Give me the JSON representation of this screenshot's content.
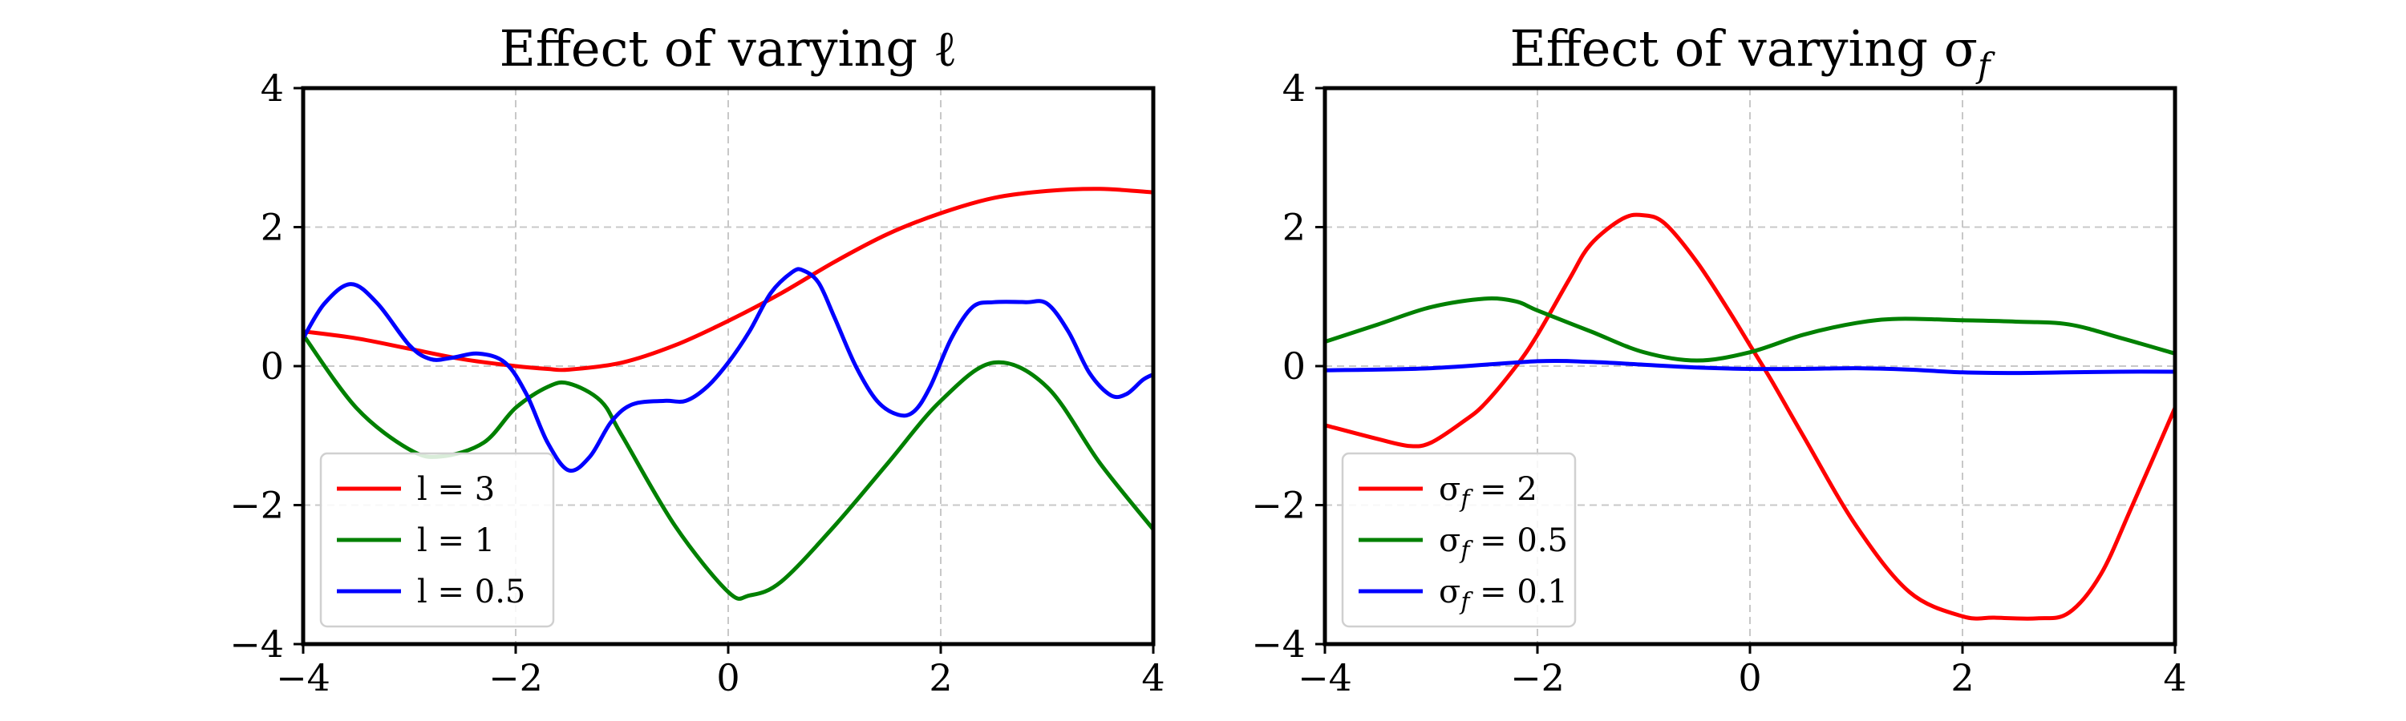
{
  "chart_data": [
    {
      "type": "line",
      "title": "Effect of varying ℓ",
      "xlabel": "",
      "ylabel": "",
      "xlim": [
        -4,
        4
      ],
      "ylim": [
        -4,
        4
      ],
      "xticks": [
        -4,
        -2,
        0,
        2,
        4
      ],
      "yticks": [
        -4,
        -2,
        0,
        2,
        4
      ],
      "grid": true,
      "legend_position": "lower-left",
      "series": [
        {
          "name": "l = 3",
          "color": "#ff0000",
          "x": [
            -4,
            -3.5,
            -3,
            -2.5,
            -2,
            -1.7,
            -1.5,
            -1,
            -0.5,
            0,
            0.5,
            1,
            1.5,
            2,
            2.5,
            3,
            3.5,
            4
          ],
          "y": [
            0.5,
            0.4,
            0.25,
            0.1,
            0.0,
            -0.04,
            -0.05,
            0.05,
            0.3,
            0.65,
            1.05,
            1.5,
            1.9,
            2.2,
            2.42,
            2.52,
            2.55,
            2.5
          ]
        },
        {
          "name": "l = 1",
          "color": "#008000",
          "x": [
            -4,
            -3.5,
            -3,
            -2.7,
            -2.3,
            -2,
            -1.7,
            -1.5,
            -1.2,
            -1,
            -0.5,
            0,
            0.2,
            0.5,
            1,
            1.5,
            2,
            2.5,
            3,
            3.5,
            4
          ],
          "y": [
            0.45,
            -0.6,
            -1.2,
            -1.3,
            -1.1,
            -0.6,
            -0.3,
            -0.25,
            -0.5,
            -1.0,
            -2.3,
            -3.25,
            -3.3,
            -3.1,
            -2.3,
            -1.4,
            -0.5,
            0.05,
            -0.3,
            -1.4,
            -2.35
          ]
        },
        {
          "name": "l = 0.5",
          "color": "#0000ff",
          "x": [
            -4,
            -3.8,
            -3.55,
            -3.3,
            -3.0,
            -2.8,
            -2.6,
            -2.35,
            -2.1,
            -1.9,
            -1.7,
            -1.5,
            -1.3,
            -1.1,
            -0.9,
            -0.6,
            -0.4,
            -0.2,
            0,
            0.2,
            0.4,
            0.6,
            0.7,
            0.85,
            1.0,
            1.2,
            1.4,
            1.6,
            1.75,
            1.9,
            2.1,
            2.3,
            2.5,
            2.8,
            3.0,
            3.2,
            3.4,
            3.6,
            3.75,
            3.9,
            4.0
          ],
          "y": [
            0.4,
            0.9,
            1.18,
            0.9,
            0.3,
            0.1,
            0.12,
            0.18,
            0.05,
            -0.4,
            -1.1,
            -1.5,
            -1.3,
            -0.8,
            -0.55,
            -0.5,
            -0.5,
            -0.3,
            0.05,
            0.5,
            1.05,
            1.35,
            1.38,
            1.2,
            0.7,
            0.0,
            -0.5,
            -0.7,
            -0.65,
            -0.3,
            0.4,
            0.85,
            0.92,
            0.92,
            0.9,
            0.5,
            -0.1,
            -0.42,
            -0.4,
            -0.2,
            -0.12
          ]
        }
      ]
    },
    {
      "type": "line",
      "title": "Effect of varying σ",
      "title_subscript": "f",
      "xlabel": "",
      "ylabel": "",
      "xlim": [
        -4,
        4
      ],
      "ylim": [
        -4,
        4
      ],
      "xticks": [
        -4,
        -2,
        0,
        2,
        4
      ],
      "yticks": [
        -4,
        -2,
        0,
        2,
        4
      ],
      "grid": true,
      "legend_position": "lower-left",
      "series": [
        {
          "name": "σf = 2",
          "name_main": "σ",
          "name_sub": "f",
          "name_rest": " = 2",
          "color": "#ff0000",
          "x": [
            -4,
            -3.5,
            -3.2,
            -3.0,
            -2.7,
            -2.5,
            -2.2,
            -2.0,
            -1.7,
            -1.5,
            -1.2,
            -1.0,
            -0.8,
            -0.5,
            -0.2,
            0,
            0.2,
            0.5,
            1.0,
            1.5,
            2.0,
            2.3,
            2.7,
            3.0,
            3.3,
            3.6,
            4.0
          ],
          "y": [
            -0.85,
            -1.05,
            -1.15,
            -1.1,
            -0.8,
            -0.55,
            0.0,
            0.45,
            1.25,
            1.75,
            2.12,
            2.17,
            2.05,
            1.5,
            0.8,
            0.3,
            -0.2,
            -1.0,
            -2.3,
            -3.25,
            -3.6,
            -3.62,
            -3.63,
            -3.55,
            -3.0,
            -2.0,
            -0.6
          ]
        },
        {
          "name": "σf = 0.5",
          "name_main": "σ",
          "name_sub": "f",
          "name_rest": " = 0.5",
          "color": "#008000",
          "x": [
            -4,
            -3.5,
            -3,
            -2.5,
            -2.2,
            -2,
            -1.5,
            -1,
            -0.5,
            0,
            0.5,
            1.0,
            1.4,
            2,
            2.5,
            3,
            3.5,
            4
          ],
          "y": [
            0.35,
            0.6,
            0.85,
            0.97,
            0.93,
            0.8,
            0.5,
            0.2,
            0.08,
            0.2,
            0.45,
            0.62,
            0.68,
            0.66,
            0.64,
            0.6,
            0.4,
            0.18
          ]
        },
        {
          "name": "σf = 0.1",
          "name_main": "σ",
          "name_sub": "f",
          "name_rest": " = 0.1",
          "color": "#0000ff",
          "x": [
            -4,
            -3,
            -2,
            -1.5,
            -1,
            -0.5,
            0,
            0.5,
            1,
            1.5,
            2,
            2.5,
            3,
            3.5,
            4
          ],
          "y": [
            -0.06,
            -0.03,
            0.07,
            0.06,
            0.02,
            -0.02,
            -0.04,
            -0.04,
            -0.03,
            -0.05,
            -0.09,
            -0.1,
            -0.09,
            -0.08,
            -0.08
          ]
        }
      ]
    }
  ]
}
